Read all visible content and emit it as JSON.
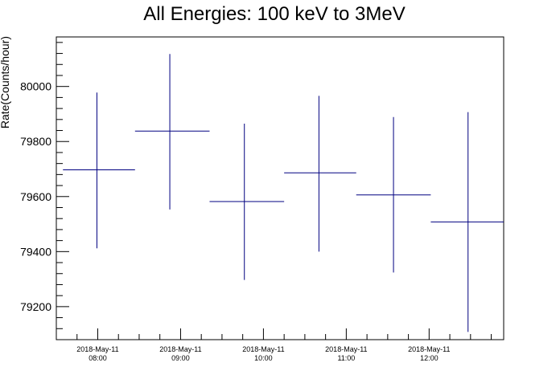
{
  "chart_data": {
    "type": "scatter",
    "title": "All Energies:  100 keV to 3MeV",
    "ylabel": "Rate(Counts/hour)",
    "xlabel": "",
    "ylim": [
      79080,
      80180
    ],
    "y_ticks": [
      79200,
      79400,
      79600,
      79800,
      80000
    ],
    "y_tick_labels": [
      "79200",
      "79400",
      "79600",
      "79800",
      "80000"
    ],
    "x_range_hours": [
      7.5,
      12.9
    ],
    "x_ticks": [
      {
        "hour": 8,
        "date_label": "2018-May-11",
        "time_label": "08:00"
      },
      {
        "hour": 9,
        "date_label": "2018-May-11",
        "time_label": "09:00"
      },
      {
        "hour": 10,
        "date_label": "2018-May-11",
        "time_label": "10:00"
      },
      {
        "hour": 11,
        "date_label": "2018-May-11",
        "time_label": "11:00"
      },
      {
        "hour": 12,
        "date_label": "2018-May-11",
        "time_label": "12:00"
      }
    ],
    "series": [
      {
        "color": "#000080",
        "points": [
          {
            "x_start": 7.58,
            "x_end": 8.45,
            "x_center": 7.99,
            "y": 79697,
            "y_low": 79412,
            "y_high": 79978
          },
          {
            "x_start": 8.45,
            "x_end": 9.35,
            "x_center": 8.87,
            "y": 79838,
            "y_low": 79553,
            "y_high": 80118
          },
          {
            "x_start": 9.35,
            "x_end": 10.25,
            "x_center": 9.77,
            "y": 79582,
            "y_low": 79297,
            "y_high": 79865
          },
          {
            "x_start": 10.25,
            "x_end": 11.12,
            "x_center": 10.67,
            "y": 79686,
            "y_low": 79400,
            "y_high": 79966
          },
          {
            "x_start": 11.12,
            "x_end": 12.02,
            "x_center": 11.57,
            "y": 79606,
            "y_low": 79324,
            "y_high": 79889
          },
          {
            "x_start": 12.02,
            "x_end": 12.9,
            "x_center": 12.47,
            "y": 79508,
            "y_low": 79108,
            "y_high": 79907
          }
        ]
      }
    ]
  }
}
